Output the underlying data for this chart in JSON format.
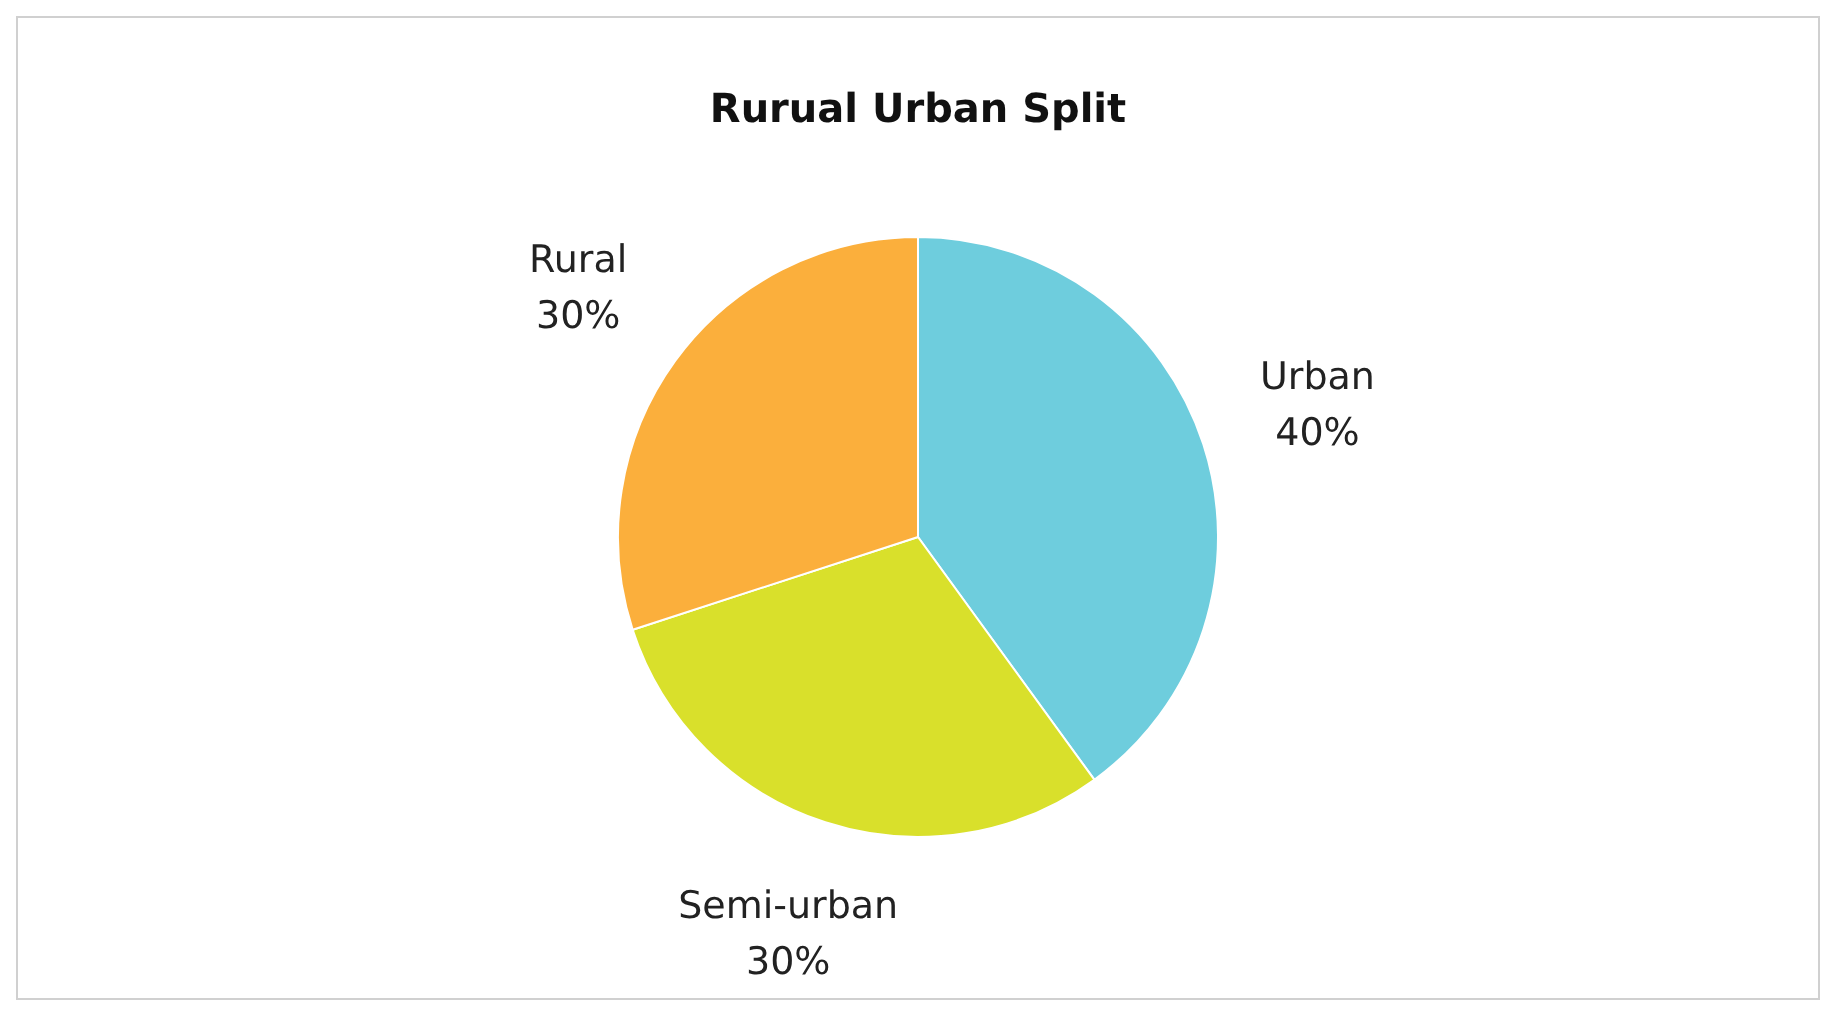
{
  "chart_data": {
    "type": "pie",
    "title": "Rurual Urban Split",
    "categories": [
      "Urban",
      "Semi-urban",
      "Rural"
    ],
    "values": [
      40,
      30,
      30
    ],
    "colors": [
      "#6ecddd",
      "#d9e02b",
      "#fbaf3c"
    ],
    "value_labels": [
      "40%",
      "30%",
      "30%"
    ],
    "legend": false
  }
}
